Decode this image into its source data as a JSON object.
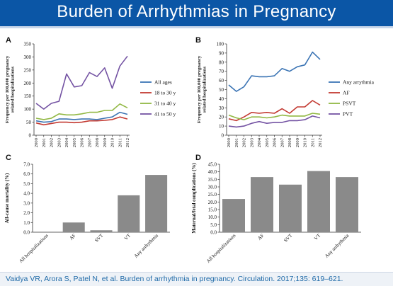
{
  "header": {
    "title": "Burden of Arrhythmias in Pregnancy"
  },
  "footer": {
    "citation": "Vaidya VR, Arora S, Patel N, et al. Burden of arrhythmia in pregnancy. Circulation. 2017;135: 619–621."
  },
  "colors": {
    "blue": "#3b74b4",
    "red": "#c33a32",
    "green": "#92b844",
    "purple": "#7453a3",
    "bar": "#8a8a8a",
    "header_bg": "#0b56a6"
  },
  "chart_data": [
    {
      "panel": "A",
      "type": "line",
      "x": [
        "2000",
        "2001",
        "2002",
        "2003",
        "2004",
        "2005",
        "2006",
        "2007",
        "2008",
        "2009",
        "2010",
        "2011",
        "2012"
      ],
      "ylabel": "Frequency per 100,000 pregnancy related hospitalizations",
      "ylim": [
        0,
        350
      ],
      "yticks": [
        0,
        50,
        100,
        150,
        200,
        250,
        300,
        350
      ],
      "grid": false,
      "legend": "right",
      "series": [
        {
          "name": "All ages",
          "color": "#3b74b4",
          "values": [
            55,
            50,
            52,
            62,
            62,
            60,
            62,
            62,
            60,
            65,
            70,
            88,
            80
          ]
        },
        {
          "name": "18 to 30 y",
          "color": "#c33a32",
          "values": [
            47,
            40,
            45,
            50,
            50,
            48,
            50,
            55,
            55,
            57,
            60,
            70,
            62
          ]
        },
        {
          "name": "31 to 40 y",
          "color": "#92b844",
          "values": [
            65,
            60,
            65,
            82,
            78,
            78,
            82,
            88,
            88,
            95,
            95,
            120,
            105
          ]
        },
        {
          "name": "41 to 50 y",
          "color": "#7453a3",
          "values": [
            122,
            100,
            122,
            130,
            235,
            185,
            190,
            240,
            225,
            258,
            180,
            265,
            303
          ]
        }
      ]
    },
    {
      "panel": "B",
      "type": "line",
      "x": [
        "2000",
        "2001",
        "2002",
        "2003",
        "2004",
        "2005",
        "2006",
        "2007",
        "2008",
        "2009",
        "2010",
        "2011",
        "2012"
      ],
      "ylabel": "Frequency per 100,000 pregnancy related hospitalizations",
      "ylim": [
        0,
        100
      ],
      "yticks": [
        0,
        10,
        20,
        30,
        40,
        50,
        60,
        70,
        80,
        90,
        100
      ],
      "grid": false,
      "legend": "right",
      "series": [
        {
          "name": "Any arrythmia",
          "color": "#3b74b4",
          "values": [
            55,
            48,
            53,
            65,
            64,
            64,
            65,
            73,
            70,
            75,
            77,
            91,
            83
          ]
        },
        {
          "name": "AF",
          "color": "#c33a32",
          "values": [
            18,
            16,
            20,
            25,
            24,
            25,
            24,
            29,
            24,
            31,
            31,
            38,
            33
          ]
        },
        {
          "name": "PSVT",
          "color": "#92b844",
          "values": [
            22,
            19,
            17,
            20,
            20,
            19,
            20,
            22,
            21,
            21,
            21,
            24,
            23
          ]
        },
        {
          "name": "PVT",
          "color": "#7453a3",
          "values": [
            10,
            9,
            10,
            13,
            15,
            13,
            14,
            14,
            16,
            16,
            17,
            21,
            19
          ]
        }
      ]
    },
    {
      "panel": "C",
      "type": "bar",
      "categories": [
        "All hospitalizations",
        "AF",
        "SVT",
        "VT",
        "Any arrhythmia"
      ],
      "values": [
        0.0,
        1.0,
        0.2,
        3.8,
        5.9
      ],
      "ylabel": "All-cause mortality (%)",
      "ylim": [
        0,
        7
      ],
      "yticks": [
        "0.0",
        "1.0",
        "2.0",
        "3.0",
        "4.0",
        "5.0",
        "6.0",
        "7.0"
      ],
      "grid": false
    },
    {
      "panel": "D",
      "type": "bar",
      "categories": [
        "All hospitalizations",
        "AF",
        "SVT",
        "VT",
        "Any arrhythmia"
      ],
      "values": [
        22.0,
        36.5,
        31.5,
        40.5,
        36.5
      ],
      "ylabel": "Maternal/fetal complications (%)",
      "ylim": [
        0,
        45
      ],
      "yticks": [
        "0.0",
        "5.0",
        "10.0",
        "15.0",
        "20.0",
        "25.0",
        "30.0",
        "35.0",
        "40.0",
        "45.0"
      ],
      "grid": false
    }
  ]
}
